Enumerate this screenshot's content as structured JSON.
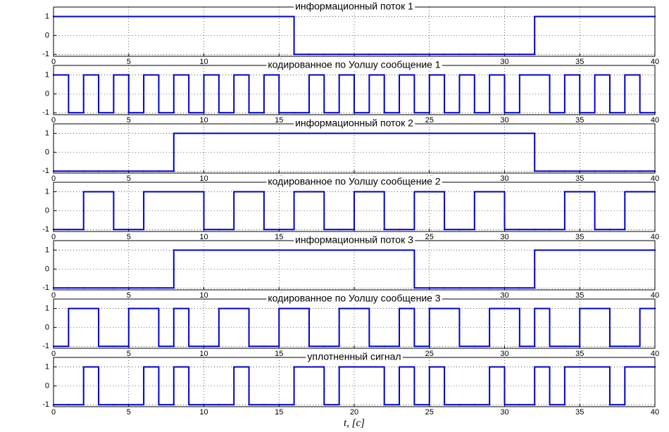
{
  "chart_data": [
    {
      "type": "step",
      "title": "информационный поток 1",
      "color": "#0000cc",
      "grid": true,
      "xlim": [
        0,
        40
      ],
      "ylim": [
        -1.1,
        1.5
      ],
      "xticks": [
        0,
        5,
        10,
        15,
        20,
        25,
        30,
        35,
        40
      ],
      "yticks": [
        -1,
        0,
        1
      ],
      "x": [
        0,
        1,
        2,
        3,
        4,
        5,
        6,
        7,
        8,
        9,
        10,
        11,
        12,
        13,
        14,
        15,
        16,
        17,
        18,
        19,
        20,
        21,
        22,
        23,
        24,
        25,
        26,
        27,
        28,
        29,
        30,
        31,
        32,
        33,
        34,
        35,
        36,
        37,
        38,
        39
      ],
      "values": [
        1,
        1,
        1,
        1,
        1,
        1,
        1,
        1,
        1,
        1,
        1,
        1,
        1,
        1,
        1,
        1,
        -1,
        -1,
        -1,
        -1,
        -1,
        -1,
        -1,
        -1,
        -1,
        -1,
        -1,
        -1,
        -1,
        -1,
        -1,
        -1,
        1,
        1,
        1,
        1,
        1,
        1,
        1,
        1
      ]
    },
    {
      "type": "step",
      "title": "кодированное по Уолшу сообщение 1",
      "color": "#0000cc",
      "grid": true,
      "xlim": [
        0,
        40
      ],
      "ylim": [
        -1.1,
        1.5
      ],
      "xticks": [
        0,
        5,
        10,
        15,
        20,
        25,
        30,
        35,
        40
      ],
      "yticks": [
        -1,
        0,
        1
      ],
      "x": [
        0,
        1,
        2,
        3,
        4,
        5,
        6,
        7,
        8,
        9,
        10,
        11,
        12,
        13,
        14,
        15,
        16,
        17,
        18,
        19,
        20,
        21,
        22,
        23,
        24,
        25,
        26,
        27,
        28,
        29,
        30,
        31,
        32,
        33,
        34,
        35,
        36,
        37,
        38,
        39
      ],
      "values": [
        1,
        -1,
        1,
        -1,
        1,
        -1,
        1,
        -1,
        1,
        -1,
        1,
        -1,
        1,
        -1,
        1,
        -1,
        -1,
        1,
        -1,
        1,
        -1,
        1,
        -1,
        1,
        -1,
        1,
        -1,
        1,
        -1,
        1,
        -1,
        1,
        1,
        -1,
        1,
        -1,
        1,
        -1,
        1,
        -1
      ]
    },
    {
      "type": "step",
      "title": "информационный поток 2",
      "color": "#0000cc",
      "grid": true,
      "xlim": [
        0,
        40
      ],
      "ylim": [
        -1.1,
        1.5
      ],
      "xticks": [
        0,
        5,
        10,
        15,
        20,
        25,
        30,
        35,
        40
      ],
      "yticks": [
        -1,
        0,
        1
      ],
      "x": [
        0,
        1,
        2,
        3,
        4,
        5,
        6,
        7,
        8,
        9,
        10,
        11,
        12,
        13,
        14,
        15,
        16,
        17,
        18,
        19,
        20,
        21,
        22,
        23,
        24,
        25,
        26,
        27,
        28,
        29,
        30,
        31,
        32,
        33,
        34,
        35,
        36,
        37,
        38,
        39
      ],
      "values": [
        -1,
        -1,
        -1,
        -1,
        -1,
        -1,
        -1,
        -1,
        1,
        1,
        1,
        1,
        1,
        1,
        1,
        1,
        1,
        1,
        1,
        1,
        1,
        1,
        1,
        1,
        1,
        1,
        1,
        1,
        1,
        1,
        1,
        1,
        -1,
        -1,
        -1,
        -1,
        -1,
        -1,
        -1,
        -1
      ]
    },
    {
      "type": "step",
      "title": "кодированное по Уолшу сообщение 2",
      "color": "#0000cc",
      "grid": true,
      "xlim": [
        0,
        40
      ],
      "ylim": [
        -1.1,
        1.5
      ],
      "xticks": [
        0,
        5,
        10,
        15,
        20,
        25,
        30,
        35,
        40
      ],
      "yticks": [
        -1,
        0,
        1
      ],
      "x": [
        0,
        1,
        2,
        3,
        4,
        5,
        6,
        7,
        8,
        9,
        10,
        11,
        12,
        13,
        14,
        15,
        16,
        17,
        18,
        19,
        20,
        21,
        22,
        23,
        24,
        25,
        26,
        27,
        28,
        29,
        30,
        31,
        32,
        33,
        34,
        35,
        36,
        37,
        38,
        39
      ],
      "values": [
        -1,
        -1,
        1,
        1,
        -1,
        -1,
        1,
        1,
        1,
        1,
        -1,
        -1,
        1,
        1,
        -1,
        -1,
        1,
        1,
        -1,
        -1,
        1,
        1,
        -1,
        -1,
        1,
        1,
        -1,
        -1,
        1,
        1,
        -1,
        -1,
        -1,
        -1,
        1,
        1,
        -1,
        -1,
        1,
        1
      ]
    },
    {
      "type": "step",
      "title": "информационный поток 3",
      "color": "#0000cc",
      "grid": true,
      "xlim": [
        0,
        40
      ],
      "ylim": [
        -1.1,
        1.5
      ],
      "xticks": [
        0,
        5,
        10,
        15,
        20,
        25,
        30,
        35,
        40
      ],
      "yticks": [
        -1,
        0,
        1
      ],
      "x": [
        0,
        1,
        2,
        3,
        4,
        5,
        6,
        7,
        8,
        9,
        10,
        11,
        12,
        13,
        14,
        15,
        16,
        17,
        18,
        19,
        20,
        21,
        22,
        23,
        24,
        25,
        26,
        27,
        28,
        29,
        30,
        31,
        32,
        33,
        34,
        35,
        36,
        37,
        38,
        39
      ],
      "values": [
        -1,
        -1,
        -1,
        -1,
        -1,
        -1,
        -1,
        -1,
        1,
        1,
        1,
        1,
        1,
        1,
        1,
        1,
        1,
        1,
        1,
        1,
        1,
        1,
        1,
        1,
        -1,
        -1,
        -1,
        -1,
        -1,
        -1,
        -1,
        -1,
        1,
        1,
        1,
        1,
        1,
        1,
        1,
        1
      ]
    },
    {
      "type": "step",
      "title": "кодированное по Уолшу сообщение 3",
      "color": "#0000cc",
      "grid": true,
      "xlim": [
        0,
        40
      ],
      "ylim": [
        -1.1,
        1.5
      ],
      "xticks": [
        0,
        5,
        10,
        15,
        20,
        25,
        30,
        35,
        40
      ],
      "yticks": [
        -1,
        0,
        1
      ],
      "x": [
        0,
        1,
        2,
        3,
        4,
        5,
        6,
        7,
        8,
        9,
        10,
        11,
        12,
        13,
        14,
        15,
        16,
        17,
        18,
        19,
        20,
        21,
        22,
        23,
        24,
        25,
        26,
        27,
        28,
        29,
        30,
        31,
        32,
        33,
        34,
        35,
        36,
        37,
        38,
        39
      ],
      "values": [
        -1,
        1,
        1,
        -1,
        -1,
        1,
        1,
        -1,
        1,
        -1,
        -1,
        1,
        1,
        -1,
        -1,
        1,
        1,
        -1,
        -1,
        1,
        1,
        -1,
        -1,
        1,
        -1,
        1,
        1,
        -1,
        -1,
        1,
        1,
        -1,
        1,
        -1,
        -1,
        1,
        1,
        -1,
        -1,
        1
      ]
    },
    {
      "type": "step",
      "title": "уплотненный сигнал",
      "xlabel": "t, [c]",
      "color": "#0000cc",
      "grid": true,
      "xlim": [
        0,
        40
      ],
      "ylim": [
        -1.1,
        1.5
      ],
      "xticks": [
        0,
        5,
        10,
        15,
        20,
        25,
        30,
        35,
        40
      ],
      "yticks": [
        -1,
        0,
        1
      ],
      "x": [
        0,
        1,
        2,
        3,
        4,
        5,
        6,
        7,
        8,
        9,
        10,
        11,
        12,
        13,
        14,
        15,
        16,
        17,
        18,
        19,
        20,
        21,
        22,
        23,
        24,
        25,
        26,
        27,
        28,
        29,
        30,
        31,
        32,
        33,
        34,
        35,
        36,
        37,
        38,
        39
      ],
      "values": [
        -1,
        -1,
        1,
        -1,
        -1,
        -1,
        1,
        -1,
        1,
        -1,
        -1,
        -1,
        1,
        -1,
        -1,
        -1,
        1,
        1,
        -1,
        1,
        1,
        1,
        -1,
        1,
        -1,
        1,
        -1,
        -1,
        -1,
        1,
        -1,
        -1,
        1,
        -1,
        1,
        1,
        1,
        -1,
        1,
        1
      ]
    }
  ]
}
